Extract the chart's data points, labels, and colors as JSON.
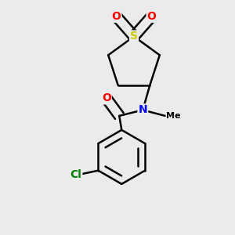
{
  "background_color": "#ebebeb",
  "bond_color": "#000000",
  "atom_colors": {
    "O": "#ff0000",
    "N": "#0000ff",
    "S": "#cccc00",
    "Cl": "#008000",
    "C": "#000000"
  },
  "bond_width": 1.8,
  "figsize": [
    3.0,
    3.0
  ],
  "dpi": 100
}
